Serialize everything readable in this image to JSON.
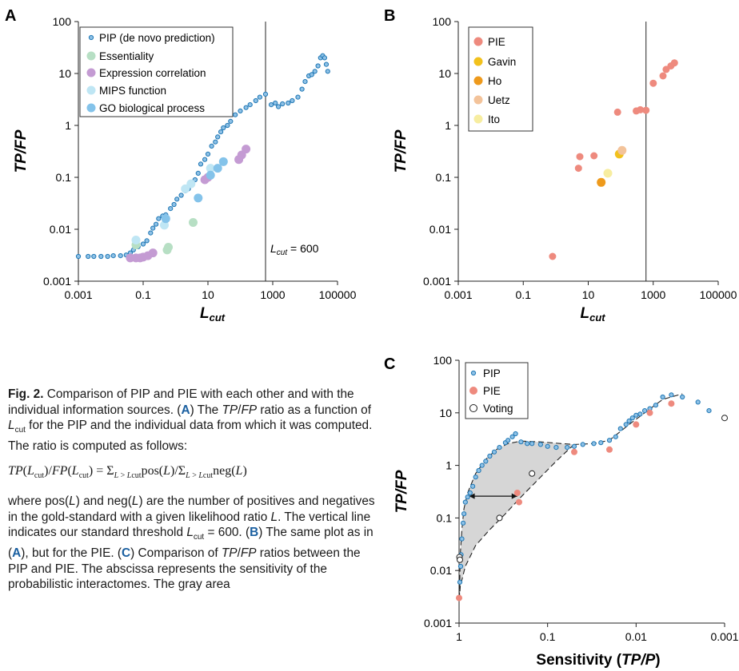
{
  "panels": {
    "a": {
      "letter": "A",
      "legend": [
        "PIP (de novo prediction)",
        "Essentiality",
        "Expression correlation",
        "MIPS function",
        "GO biological process"
      ],
      "annotation": "L_cut = 600"
    },
    "b": {
      "letter": "B",
      "legend": [
        "PIE",
        "Gavin",
        "Ho",
        "Uetz",
        "Ito"
      ]
    },
    "c": {
      "letter": "C",
      "legend": [
        "PIP",
        "PIE",
        "Voting"
      ]
    }
  },
  "colors": {
    "pip": "#1f77b4",
    "pip_fill": "#8ec1e6",
    "essentiality": "#b7dfc4",
    "expression": "#c49bd3",
    "mips": "#bfe6f4",
    "go": "#84c3ea",
    "pie": "#ee8a7e",
    "gavin": "#f2c11c",
    "ho": "#ee9a1c",
    "uetz": "#f3c39a",
    "ito": "#f7eda0",
    "voting": "#ffffff",
    "shade": "#d6d6d6"
  },
  "chart_data": [
    {
      "panel": "A",
      "type": "scatter",
      "xlabel": "L_cut",
      "ylabel": "TP/FP",
      "xscale": "log",
      "yscale": "log",
      "xlim": [
        0.001,
        100000
      ],
      "ylim": [
        0.001,
        100
      ],
      "xticks": [
        "0.001",
        "0.1",
        "10",
        "1000",
        "100000"
      ],
      "yticks": [
        "0.001",
        "0.01",
        "0.1",
        "1",
        "10",
        "100"
      ],
      "vline": 600,
      "legend_position": "top-left",
      "series": [
        {
          "name": "PIP (de novo prediction)",
          "points": [
            [
              0.001,
              0.003
            ],
            [
              0.002,
              0.003
            ],
            [
              0.003,
              0.003
            ],
            [
              0.005,
              0.003
            ],
            [
              0.008,
              0.003
            ],
            [
              0.012,
              0.0031
            ],
            [
              0.02,
              0.0031
            ],
            [
              0.03,
              0.0032
            ],
            [
              0.04,
              0.0035
            ],
            [
              0.05,
              0.004
            ],
            [
              0.07,
              0.0046
            ],
            [
              0.1,
              0.0052
            ],
            [
              0.13,
              0.006
            ],
            [
              0.17,
              0.0085
            ],
            [
              0.2,
              0.0105
            ],
            [
              0.25,
              0.0125
            ],
            [
              0.3,
              0.016
            ],
            [
              0.4,
              0.018
            ],
            [
              0.5,
              0.019
            ],
            [
              0.7,
              0.025
            ],
            [
              0.9,
              0.03
            ],
            [
              1.1,
              0.038
            ],
            [
              1.5,
              0.045
            ],
            [
              2,
              0.055
            ],
            [
              2.5,
              0.06
            ],
            [
              3,
              0.075
            ],
            [
              4,
              0.09
            ],
            [
              5,
              0.12
            ],
            [
              6,
              0.18
            ],
            [
              8,
              0.22
            ],
            [
              10,
              0.28
            ],
            [
              13,
              0.4
            ],
            [
              17,
              0.48
            ],
            [
              20,
              0.6
            ],
            [
              25,
              0.75
            ],
            [
              30,
              0.9
            ],
            [
              40,
              1.0
            ],
            [
              50,
              1.2
            ],
            [
              70,
              1.6
            ],
            [
              100,
              1.9
            ],
            [
              150,
              2.2
            ],
            [
              200,
              2.5
            ],
            [
              300,
              3.0
            ],
            [
              400,
              3.5
            ],
            [
              600,
              4.0
            ],
            [
              900,
              2.5
            ],
            [
              1200,
              2.7
            ],
            [
              1500,
              2.3
            ],
            [
              2000,
              2.6
            ],
            [
              3000,
              2.7
            ],
            [
              4000,
              3.0
            ],
            [
              6000,
              3.5
            ],
            [
              8000,
              5
            ],
            [
              10000,
              7
            ],
            [
              13000,
              9
            ],
            [
              16000,
              9.5
            ],
            [
              20000,
              11
            ],
            [
              25000,
              14
            ],
            [
              30000,
              20
            ],
            [
              35000,
              22
            ],
            [
              40000,
              20
            ],
            [
              45000,
              15
            ],
            [
              50000,
              11
            ]
          ]
        },
        {
          "name": "Essentiality",
          "points": [
            [
              0.06,
              0.005
            ],
            [
              0.55,
              0.004
            ],
            [
              0.6,
              0.0045
            ],
            [
              3.5,
              0.0135
            ]
          ]
        },
        {
          "name": "Expression correlation",
          "points": [
            [
              0.04,
              0.0028
            ],
            [
              0.06,
              0.0028
            ],
            [
              0.08,
              0.0028
            ],
            [
              0.1,
              0.0029
            ],
            [
              0.14,
              0.0031
            ],
            [
              0.2,
              0.0035
            ],
            [
              8,
              0.09
            ],
            [
              10,
              0.1
            ],
            [
              90,
              0.22
            ],
            [
              110,
              0.27
            ],
            [
              150,
              0.35
            ]
          ]
        },
        {
          "name": "MIPS function",
          "points": [
            [
              0.06,
              0.0062
            ],
            [
              0.45,
              0.012
            ],
            [
              2,
              0.06
            ],
            [
              3,
              0.075
            ],
            [
              12,
              0.15
            ]
          ]
        },
        {
          "name": "GO biological process",
          "points": [
            [
              0.5,
              0.016
            ],
            [
              5,
              0.04
            ],
            [
              12,
              0.11
            ],
            [
              20,
              0.15
            ],
            [
              30,
              0.2
            ]
          ]
        }
      ]
    },
    {
      "panel": "B",
      "type": "scatter",
      "xlabel": "L_cut",
      "ylabel": "TP/FP",
      "xscale": "log",
      "yscale": "log",
      "xlim": [
        0.001,
        100000
      ],
      "ylim": [
        0.001,
        100
      ],
      "xticks": [
        "0.001",
        "0.1",
        "10",
        "1000",
        "100000"
      ],
      "yticks": [
        "0.001",
        "0.01",
        "0.1",
        "1",
        "10",
        "100"
      ],
      "vline": 600,
      "legend_position": "top-left",
      "series": [
        {
          "name": "PIE",
          "points": [
            [
              0.8,
              0.003
            ],
            [
              5,
              0.15
            ],
            [
              5.5,
              0.25
            ],
            [
              15,
              0.26
            ],
            [
              80,
              1.8
            ],
            [
              300,
              1.9
            ],
            [
              400,
              2.0
            ],
            [
              600,
              1.95
            ],
            [
              1000,
              6.5
            ],
            [
              2000,
              9
            ],
            [
              2500,
              12
            ],
            [
              3500,
              14
            ],
            [
              4500,
              16
            ]
          ]
        },
        {
          "name": "Gavin",
          "points": [
            [
              90,
              0.28
            ]
          ]
        },
        {
          "name": "Ho",
          "points": [
            [
              25,
              0.08
            ]
          ]
        },
        {
          "name": "Uetz",
          "points": [
            [
              110,
              0.33
            ]
          ]
        },
        {
          "name": "Ito",
          "points": [
            [
              40,
              0.12
            ]
          ]
        }
      ]
    },
    {
      "panel": "C",
      "type": "scatter",
      "xlabel": "Sensitivity (TP/P)",
      "ylabel": "TP/FP",
      "xscale": "log",
      "xreversed": true,
      "yscale": "log",
      "xlim": [
        1,
        0.001
      ],
      "ylim": [
        0.001,
        100
      ],
      "xticks": [
        "1",
        "0.1",
        "0.01",
        "0.001"
      ],
      "yticks": [
        "0.001",
        "0.01",
        "0.1",
        "1",
        "10",
        "100"
      ],
      "legend_position": "top-left",
      "series": [
        {
          "name": "PIP",
          "points": [
            [
              0.99,
              0.003
            ],
            [
              0.98,
              0.006
            ],
            [
              0.96,
              0.012
            ],
            [
              0.95,
              0.02
            ],
            [
              0.93,
              0.04
            ],
            [
              0.9,
              0.08
            ],
            [
              0.88,
              0.12
            ],
            [
              0.85,
              0.2
            ],
            [
              0.8,
              0.25
            ],
            [
              0.75,
              0.3
            ],
            [
              0.7,
              0.4
            ],
            [
              0.65,
              0.6
            ],
            [
              0.6,
              0.8
            ],
            [
              0.55,
              1.0
            ],
            [
              0.5,
              1.2
            ],
            [
              0.45,
              1.5
            ],
            [
              0.4,
              1.8
            ],
            [
              0.35,
              2.2
            ],
            [
              0.3,
              2.7
            ],
            [
              0.28,
              3.0
            ],
            [
              0.25,
              3.5
            ],
            [
              0.23,
              4.0
            ],
            [
              0.2,
              2.8
            ],
            [
              0.17,
              2.6
            ],
            [
              0.15,
              2.6
            ],
            [
              0.12,
              2.5
            ],
            [
              0.1,
              2.3
            ],
            [
              0.08,
              2.2
            ],
            [
              0.06,
              2.2
            ],
            [
              0.05,
              2.3
            ],
            [
              0.04,
              2.5
            ],
            [
              0.03,
              2.6
            ],
            [
              0.025,
              2.7
            ],
            [
              0.02,
              3.0
            ],
            [
              0.017,
              3.5
            ],
            [
              0.015,
              5
            ],
            [
              0.013,
              6
            ],
            [
              0.012,
              7
            ],
            [
              0.011,
              8
            ],
            [
              0.01,
              9
            ],
            [
              0.009,
              9.5
            ],
            [
              0.008,
              11
            ],
            [
              0.007,
              12
            ],
            [
              0.006,
              14
            ],
            [
              0.005,
              20
            ],
            [
              0.004,
              22
            ],
            [
              0.003,
              20
            ],
            [
              0.002,
              16
            ],
            [
              0.0015,
              11
            ]
          ]
        },
        {
          "name": "PIE",
          "points": [
            [
              1.0,
              0.003
            ],
            [
              0.22,
              0.3
            ],
            [
              0.21,
              0.2
            ],
            [
              0.05,
              1.8
            ],
            [
              0.02,
              2.0
            ],
            [
              0.01,
              6
            ],
            [
              0.007,
              10
            ],
            [
              0.004,
              15
            ]
          ]
        },
        {
          "name": "Voting",
          "points": [
            [
              0.99,
              0.018
            ],
            [
              0.98,
              0.016
            ],
            [
              0.35,
              0.1
            ],
            [
              0.15,
              0.7
            ],
            [
              0.001,
              8
            ]
          ]
        }
      ]
    }
  ],
  "caption": {
    "lead_bold": "Fig. 2.",
    "p1": "Comparison of PIP and PIE with each other and with the individual information sources. (A) The TP/FP ratio as a function of L_cut for the PIP and the individual data from which it was computed. The ratio is computed as follows:",
    "formula": "TP(L_cut)/FP(L_cut) = Σ_{L > L_cut} pos(L)/Σ_{L > L_cut} neg(L)",
    "p2": "where pos(L) and neg(L) are the number of positives and negatives in the gold-standard with a given likelihood ratio L. The vertical line indicates our standard threshold L_cut = 600. (B) The same plot as in (A), but for the PIE. (C) Comparison of TP/FP ratios between the PIP and PIE. The abscissa represents the sensitivity of the probabilistic interactomes. The gray area"
  }
}
